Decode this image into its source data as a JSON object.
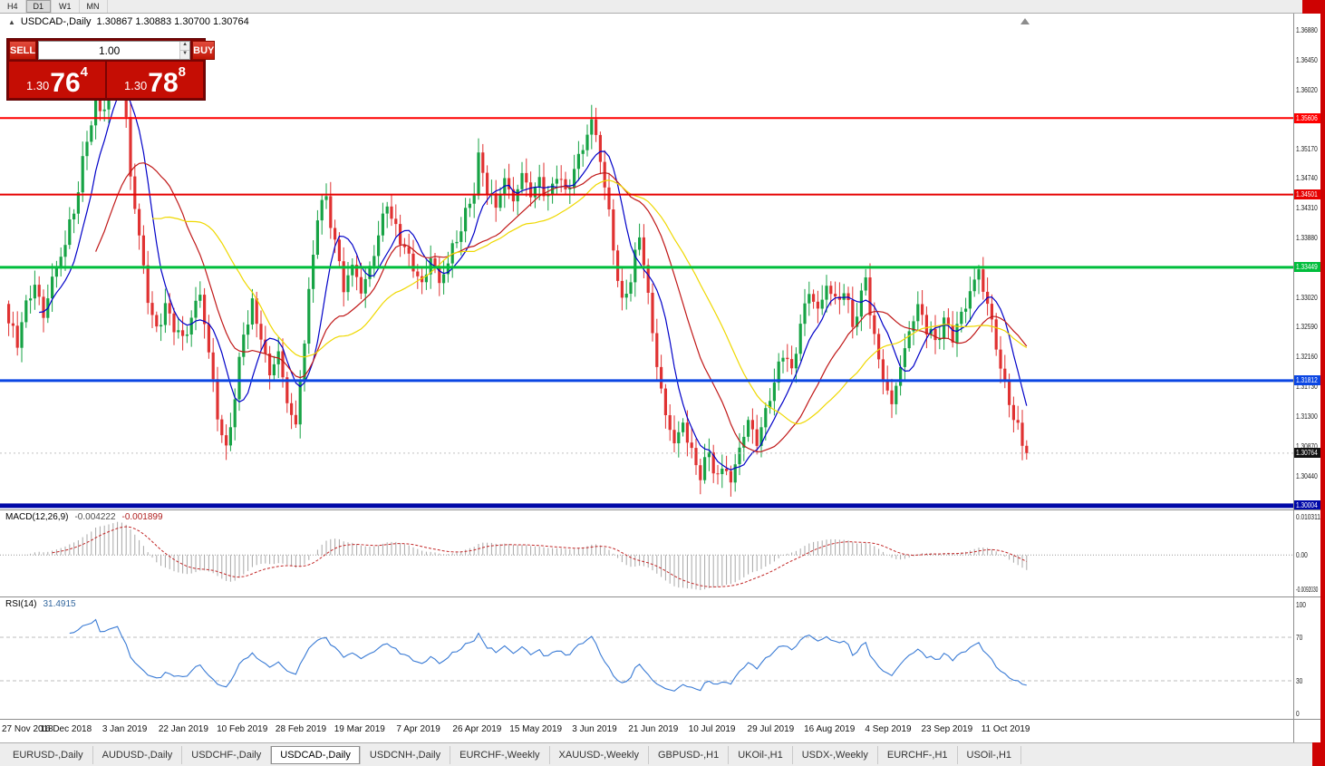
{
  "toolbar": {
    "timeframes": [
      "H4",
      "D1",
      "W1",
      "MN"
    ],
    "active_timeframe": "D1"
  },
  "chart": {
    "symbol_label": "USDCAD-,Daily",
    "ohlc_line": "1.30867 1.30883 1.30700 1.30764",
    "trade_panel": {
      "sell_label": "SELL",
      "buy_label": "BUY",
      "volume": "1.00",
      "sell_price": {
        "big": "1.30",
        "main": "76",
        "pip": "4"
      },
      "buy_price": {
        "big": "1.30",
        "main": "78",
        "pip": "8"
      }
    }
  },
  "chart_data": {
    "type": "candlestick",
    "symbol": "USDCAD",
    "timeframe": "Daily",
    "open": "1.30867",
    "high": "1.30883",
    "low": "1.30700",
    "close": "1.30764",
    "current_price": 1.30764,
    "current_price_label": "1.30764",
    "ylim": [
      1.2992,
      1.3712
    ],
    "candle_count": 235,
    "first_open": 1.3292,
    "up_color": "#17A345",
    "down_color": "#E03232",
    "y_axis_ticks": [
      "1.36880",
      "1.36450",
      "1.36020",
      "1.35170",
      "1.34740",
      "1.34310",
      "1.33880",
      "1.33020",
      "1.32590",
      "1.32160",
      "1.31730",
      "1.31300",
      "1.30870",
      "1.30440"
    ],
    "x_axis_ticks": [
      "27 Nov 2018",
      "16 Dec 2018",
      "3 Jan 2019",
      "22 Jan 2019",
      "10 Feb 2019",
      "28 Feb 2019",
      "19 Mar 2019",
      "7 Apr 2019",
      "26 Apr 2019",
      "15 May 2019",
      "3 Jun 2019",
      "21 Jun 2019",
      "10 Jul 2019",
      "29 Jul 2019",
      "16 Aug 2019",
      "4 Sep 2019",
      "23 Sep 2019",
      "11 Oct 2019"
    ],
    "levels": [
      {
        "price": 1.35606,
        "label": "1.35606",
        "color": "#FE0000",
        "width": 2
      },
      {
        "price": 1.34501,
        "label": "1.34501",
        "color": "#E60000",
        "width": 2
      },
      {
        "price": 1.33449,
        "label": "1.33449",
        "color": "#00BE3C",
        "width": 3
      },
      {
        "price": 1.31812,
        "label": "1.31812",
        "color": "#0B46E3",
        "width": 3
      },
      {
        "price": 1.30004,
        "label": "1.30004",
        "color": "#0008A8",
        "width": 5
      }
    ],
    "moving_averages": [
      {
        "period": 8,
        "color": "#0000C8"
      },
      {
        "period": 21,
        "color": "#C01818"
      },
      {
        "period": 34,
        "color": "#EFD800"
      }
    ],
    "close_anchors": [
      [
        0,
        1.327
      ],
      [
        2,
        1.3235
      ],
      [
        4,
        1.329
      ],
      [
        6,
        1.332
      ],
      [
        8,
        1.3275
      ],
      [
        10,
        1.333
      ],
      [
        13,
        1.338
      ],
      [
        15,
        1.3425
      ],
      [
        17,
        1.3495
      ],
      [
        19,
        1.356
      ],
      [
        20,
        1.3615
      ],
      [
        21,
        1.357
      ],
      [
        23,
        1.36
      ],
      [
        25,
        1.3648
      ],
      [
        27,
        1.356
      ],
      [
        28,
        1.3475
      ],
      [
        30,
        1.339
      ],
      [
        32,
        1.33
      ],
      [
        34,
        1.3255
      ],
      [
        36,
        1.3285
      ],
      [
        38,
        1.326
      ],
      [
        40,
        1.324
      ],
      [
        42,
        1.3272
      ],
      [
        44,
        1.3312
      ],
      [
        46,
        1.322
      ],
      [
        48,
        1.313
      ],
      [
        50,
        1.3078
      ],
      [
        52,
        1.316
      ],
      [
        54,
        1.3252
      ],
      [
        56,
        1.3292
      ],
      [
        58,
        1.324
      ],
      [
        60,
        1.319
      ],
      [
        62,
        1.3222
      ],
      [
        64,
        1.315
      ],
      [
        66,
        1.3118
      ],
      [
        67,
        1.318
      ],
      [
        69,
        1.3302
      ],
      [
        71,
        1.3422
      ],
      [
        73,
        1.3445
      ],
      [
        75,
        1.338
      ],
      [
        77,
        1.332
      ],
      [
        79,
        1.3345
      ],
      [
        81,
        1.331
      ],
      [
        83,
        1.3342
      ],
      [
        85,
        1.3392
      ],
      [
        87,
        1.344
      ],
      [
        89,
        1.34
      ],
      [
        91,
        1.337
      ],
      [
        93,
        1.3345
      ],
      [
        95,
        1.3318
      ],
      [
        97,
        1.336
      ],
      [
        99,
        1.3325
      ],
      [
        101,
        1.3352
      ],
      [
        103,
        1.3385
      ],
      [
        105,
        1.342
      ],
      [
        107,
        1.3458
      ],
      [
        108,
        1.3502
      ],
      [
        110,
        1.3462
      ],
      [
        112,
        1.343
      ],
      [
        114,
        1.3472
      ],
      [
        116,
        1.344
      ],
      [
        118,
        1.348
      ],
      [
        120,
        1.3452
      ],
      [
        122,
        1.3472
      ],
      [
        124,
        1.344
      ],
      [
        126,
        1.3482
      ],
      [
        128,
        1.3452
      ],
      [
        130,
        1.3486
      ],
      [
        132,
        1.3522
      ],
      [
        134,
        1.3556
      ],
      [
        136,
        1.3502
      ],
      [
        138,
        1.342
      ],
      [
        140,
        1.333
      ],
      [
        141,
        1.3292
      ],
      [
        143,
        1.3332
      ],
      [
        145,
        1.3392
      ],
      [
        147,
        1.3302
      ],
      [
        149,
        1.3202
      ],
      [
        151,
        1.3132
      ],
      [
        153,
        1.3092
      ],
      [
        155,
        1.3122
      ],
      [
        157,
        1.3072
      ],
      [
        159,
        1.3046
      ],
      [
        161,
        1.3076
      ],
      [
        163,
        1.304
      ],
      [
        165,
        1.3062
      ],
      [
        166,
        1.3032
      ],
      [
        168,
        1.3082
      ],
      [
        170,
        1.3122
      ],
      [
        172,
        1.3092
      ],
      [
        174,
        1.3136
      ],
      [
        176,
        1.3182
      ],
      [
        178,
        1.3222
      ],
      [
        180,
        1.3192
      ],
      [
        182,
        1.3262
      ],
      [
        184,
        1.3312
      ],
      [
        186,
        1.3282
      ],
      [
        188,
        1.3322
      ],
      [
        190,
        1.3292
      ],
      [
        192,
        1.3312
      ],
      [
        194,
        1.3262
      ],
      [
        196,
        1.3302
      ],
      [
        197,
        1.3332
      ],
      [
        199,
        1.3242
      ],
      [
        201,
        1.3182
      ],
      [
        203,
        1.3146
      ],
      [
        205,
        1.3202
      ],
      [
        207,
        1.3252
      ],
      [
        209,
        1.3292
      ],
      [
        211,
        1.3256
      ],
      [
        213,
        1.3236
      ],
      [
        215,
        1.3266
      ],
      [
        217,
        1.3246
      ],
      [
        219,
        1.3276
      ],
      [
        221,
        1.3312
      ],
      [
        223,
        1.3336
      ],
      [
        225,
        1.3292
      ],
      [
        227,
        1.3232
      ],
      [
        229,
        1.3172
      ],
      [
        231,
        1.3132
      ],
      [
        233,
        1.3092
      ],
      [
        234,
        1.30764
      ]
    ]
  },
  "macd": {
    "name": "MACD(12,26,9)",
    "value": "-0.004222",
    "signal": "-0.001899",
    "params": {
      "fast": 12,
      "slow": 26,
      "signal": 9
    },
    "histogram_color": "#A8A8A8",
    "signal_color": "#C22727",
    "axis": [
      {
        "v": 0.010311,
        "label": "0.010311"
      },
      {
        "v": 0,
        "label": "0.00"
      },
      {
        "v": -0.009203,
        "label": "-0.0092030"
      }
    ]
  },
  "rsi": {
    "name": "RSI(14)",
    "value": "31.4915",
    "period": 14,
    "line_color": "#3A7BD5",
    "levels": [
      70,
      30
    ],
    "axis": [
      {
        "v": 100,
        "label": "100"
      },
      {
        "v": 70,
        "label": "70"
      },
      {
        "v": 30,
        "label": "30"
      },
      {
        "v": 0,
        "label": "0"
      }
    ]
  },
  "tabs": [
    "EURUSD-,Daily",
    "AUDUSD-,Daily",
    "USDCHF-,Daily",
    "USDCAD-,Daily",
    "USDCNH-,Daily",
    "EURCHF-,Weekly",
    "XAUUSD-,Weekly",
    "GBPUSD-,H1",
    "UKOil-,H1",
    "USDX-,Weekly",
    "EURCHF-,H1",
    "USOil-,H1"
  ],
  "active_tab": "USDCAD-,Daily"
}
